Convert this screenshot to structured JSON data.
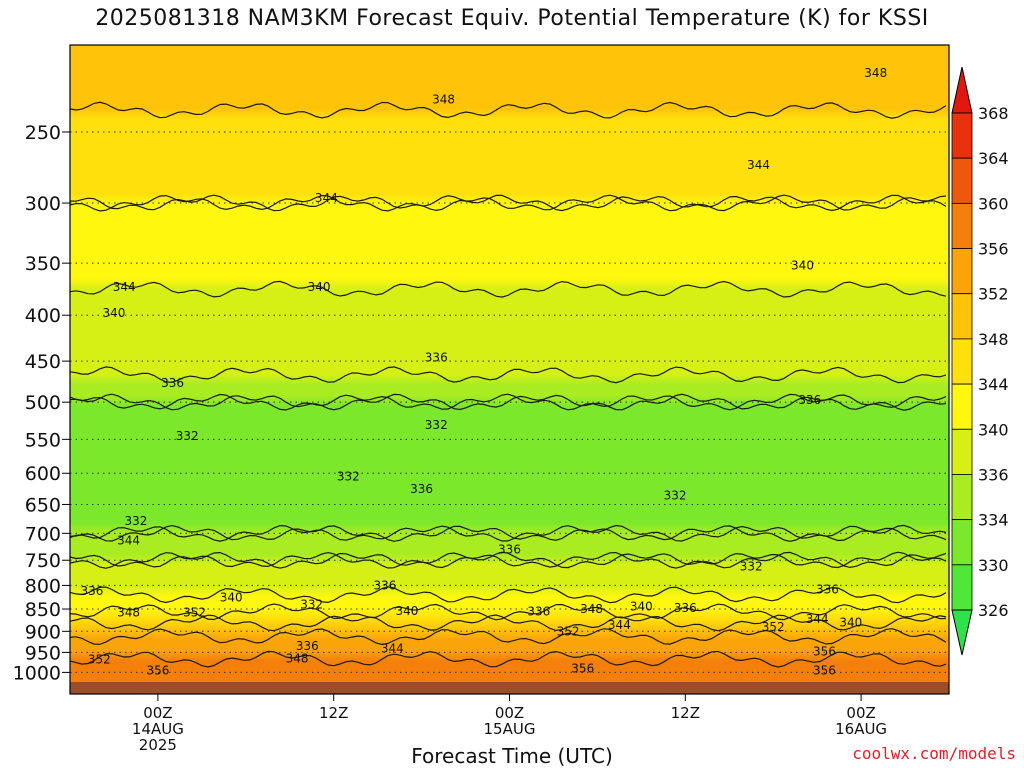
{
  "title": "2025081318 NAM3KM Forecast Equiv. Potential Temperature (K) for KSSI",
  "credit": "coolwx.com/models",
  "chart_data": {
    "type": "heatmap",
    "title": "2025081318 NAM3KM Forecast Equiv. Potential Temperature (K) for KSSI",
    "xlabel": "Forecast Time (UTC)",
    "ylabel": "",
    "y_scale": "log-pressure (hPa), inverted",
    "ylim": [
      1025,
      200
    ],
    "xlim_hours_from_00Z_14AUG": [
      -6,
      54
    ],
    "y_ticks": [
      250,
      300,
      350,
      400,
      450,
      500,
      550,
      600,
      650,
      700,
      750,
      800,
      850,
      900,
      950,
      1000
    ],
    "x_ticks": [
      {
        "hour": 0,
        "lines": [
          "00Z",
          "14AUG",
          "2025"
        ]
      },
      {
        "hour": 12,
        "lines": [
          "12Z"
        ]
      },
      {
        "hour": 24,
        "lines": [
          "00Z",
          "15AUG"
        ]
      },
      {
        "hour": 36,
        "lines": [
          "12Z"
        ]
      },
      {
        "hour": 48,
        "lines": [
          "00Z",
          "16AUG"
        ]
      }
    ],
    "colorbar": {
      "labels": [
        326,
        330,
        334,
        336,
        340,
        344,
        348,
        352,
        356,
        360,
        364,
        368
      ],
      "colors": [
        "#2fe24a",
        "#4fe838",
        "#7ce82b",
        "#a9ec22",
        "#d6f016",
        "#fff70e",
        "#ffdf0c",
        "#ffc40a",
        "#fba40a",
        "#f4800b",
        "#ee580d",
        "#e8320f",
        "#e0180f"
      ],
      "extend": "both"
    },
    "profile_K": [
      {
        "p": 200,
        "theta_e": 351
      },
      {
        "p": 250,
        "theta_e": 347
      },
      {
        "p": 300,
        "theta_e": 344
      },
      {
        "p": 350,
        "theta_e": 341
      },
      {
        "p": 400,
        "theta_e": 339
      },
      {
        "p": 450,
        "theta_e": 337
      },
      {
        "p": 500,
        "theta_e": 334
      },
      {
        "p": 550,
        "theta_e": 333
      },
      {
        "p": 600,
        "theta_e": 332
      },
      {
        "p": 650,
        "theta_e": 333
      },
      {
        "p": 700,
        "theta_e": 334
      },
      {
        "p": 750,
        "theta_e": 336
      },
      {
        "p": 800,
        "theta_e": 338
      },
      {
        "p": 850,
        "theta_e": 343
      },
      {
        "p": 900,
        "theta_e": 351
      },
      {
        "p": 950,
        "theta_e": 355
      },
      {
        "p": 1000,
        "theta_e": 358
      }
    ],
    "contour_labels": [
      {
        "p": 215,
        "h": 49,
        "text": "348"
      },
      {
        "p": 230,
        "h": 19.5,
        "text": "348"
      },
      {
        "p": 272,
        "h": 41,
        "text": "344"
      },
      {
        "p": 296,
        "h": 11.5,
        "text": "344"
      },
      {
        "p": 352,
        "h": 44,
        "text": "340"
      },
      {
        "p": 372,
        "h": 11,
        "text": "340"
      },
      {
        "p": 372,
        "h": -2.3,
        "text": "344"
      },
      {
        "p": 398,
        "h": -3,
        "text": "340"
      },
      {
        "p": 446,
        "h": 19,
        "text": "336"
      },
      {
        "p": 476,
        "h": 1,
        "text": "336"
      },
      {
        "p": 497,
        "h": 44.5,
        "text": "336"
      },
      {
        "p": 530,
        "h": 19,
        "text": "332"
      },
      {
        "p": 545,
        "h": 2,
        "text": "332"
      },
      {
        "p": 605,
        "h": 13,
        "text": "332"
      },
      {
        "p": 625,
        "h": 18,
        "text": "336"
      },
      {
        "p": 635,
        "h": 35.3,
        "text": "332"
      },
      {
        "p": 678,
        "h": -1.5,
        "text": "332"
      },
      {
        "p": 713,
        "h": -2,
        "text": "344"
      },
      {
        "p": 730,
        "h": 24,
        "text": "336"
      },
      {
        "p": 762,
        "h": 40.5,
        "text": "332"
      },
      {
        "p": 800,
        "h": 15.5,
        "text": "336"
      },
      {
        "p": 808,
        "h": 45.7,
        "text": "336"
      },
      {
        "p": 812,
        "h": -4.5,
        "text": "336"
      },
      {
        "p": 825,
        "h": 5,
        "text": "340"
      },
      {
        "p": 840,
        "h": 10.5,
        "text": "332"
      },
      {
        "p": 845,
        "h": 33,
        "text": "340"
      },
      {
        "p": 848,
        "h": 36,
        "text": "336"
      },
      {
        "p": 850,
        "h": 29.6,
        "text": "348"
      },
      {
        "p": 854,
        "h": 17,
        "text": "340"
      },
      {
        "p": 855,
        "h": 26,
        "text": "336"
      },
      {
        "p": 858,
        "h": -2,
        "text": "348"
      },
      {
        "p": 858,
        "h": 2.5,
        "text": "352"
      },
      {
        "p": 872,
        "h": 45,
        "text": "344"
      },
      {
        "p": 880,
        "h": 47.3,
        "text": "340"
      },
      {
        "p": 885,
        "h": 31.5,
        "text": "344"
      },
      {
        "p": 890,
        "h": 42,
        "text": "352"
      },
      {
        "p": 900,
        "h": 28,
        "text": "352"
      },
      {
        "p": 935,
        "h": 10.2,
        "text": "336"
      },
      {
        "p": 940,
        "h": 16,
        "text": "344"
      },
      {
        "p": 948,
        "h": 45.5,
        "text": "356"
      },
      {
        "p": 965,
        "h": 9.5,
        "text": "348"
      },
      {
        "p": 968,
        "h": -4,
        "text": "352"
      },
      {
        "p": 990,
        "h": 29,
        "text": "356"
      },
      {
        "p": 995,
        "h": 0,
        "text": "356"
      },
      {
        "p": 995,
        "h": 45.5,
        "text": "356"
      }
    ],
    "grid": true,
    "legend": "colorbar-right"
  }
}
